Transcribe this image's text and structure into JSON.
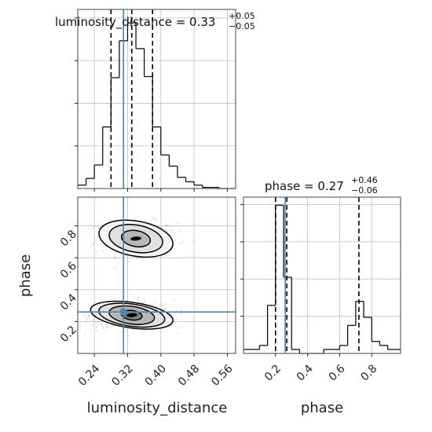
{
  "chart_data": [
    {
      "type": "histogram",
      "panel": "top-left",
      "title": {
        "main": "luminosity_distance = 0.33",
        "sup": "+0.05",
        "sub": "−0.05"
      },
      "xlim": [
        0.2,
        0.58
      ],
      "bin_edges": [
        0.2,
        0.22,
        0.24,
        0.26,
        0.28,
        0.3,
        0.32,
        0.34,
        0.36,
        0.38,
        0.4,
        0.42,
        0.44,
        0.46,
        0.48,
        0.5,
        0.52,
        0.54,
        0.56,
        0.58
      ],
      "counts": [
        3,
        9,
        21,
        55,
        99,
        132,
        148,
        125,
        100,
        55,
        30,
        20,
        10,
        6,
        3,
        1,
        1,
        0,
        0
      ],
      "ymax": 160,
      "quantiles": [
        0.28,
        0.33,
        0.38
      ],
      "truth": 0.31,
      "grid": true
    },
    {
      "type": "scatter",
      "panel": "bottom-left",
      "xlabel": "luminosity_distance",
      "ylabel": "phase",
      "xlim": [
        0.2,
        0.58
      ],
      "ylim": [
        0.0,
        0.98
      ],
      "xticks": [
        "0.24",
        "0.32",
        "0.40",
        "0.48",
        "0.56"
      ],
      "xtick_values": [
        0.24,
        0.32,
        0.4,
        0.48,
        0.56
      ],
      "yticks": [
        "0.2",
        "0.4",
        "0.6",
        "0.8"
      ],
      "ytick_values": [
        0.2,
        0.4,
        0.6,
        0.8
      ],
      "clusters": [
        {
          "center": [
            0.34,
            0.72
          ],
          "spread": [
            0.05,
            0.055
          ],
          "n": 300
        },
        {
          "center": [
            0.33,
            0.24
          ],
          "spread": [
            0.05,
            0.045
          ],
          "n": 420
        }
      ],
      "contour_levels": [
        {
          "mode": 0,
          "rx": 0.035,
          "ry": 0.05,
          "rot": 10
        },
        {
          "mode": 0,
          "rx": 0.065,
          "ry": 0.085,
          "rot": 10
        },
        {
          "mode": 0,
          "rx": 0.09,
          "ry": 0.11,
          "rot": 10
        },
        {
          "mode": 1,
          "rx": 0.025,
          "ry": 0.03,
          "rot": 8
        },
        {
          "mode": 1,
          "rx": 0.055,
          "ry": 0.055,
          "rot": 8
        },
        {
          "mode": 1,
          "rx": 0.08,
          "ry": 0.07,
          "rot": 8
        },
        {
          "mode": 1,
          "rx": 0.1,
          "ry": 0.08,
          "rot": 8
        }
      ],
      "truth": {
        "x": 0.31,
        "y": 0.26
      },
      "grid": true
    },
    {
      "type": "histogram",
      "panel": "bottom-right",
      "title": {
        "main": "phase = 0.27",
        "sup": "+0.46",
        "sub": "−0.06"
      },
      "xlabel": "phase",
      "xlim": [
        0.0,
        0.98
      ],
      "xticks": [
        "0.2",
        "0.4",
        "0.6",
        "0.8"
      ],
      "xtick_values": [
        0.2,
        0.4,
        0.6,
        0.8
      ],
      "bin_edges": [
        0.0,
        0.05,
        0.1,
        0.15,
        0.2,
        0.25,
        0.3,
        0.35,
        0.4,
        0.45,
        0.5,
        0.55,
        0.6,
        0.65,
        0.7,
        0.75,
        0.8,
        0.85,
        0.9,
        0.95,
        0.98
      ],
      "counts": [
        5,
        5,
        10,
        60,
        185,
        95,
        5,
        0,
        0,
        0,
        5,
        5,
        10,
        35,
        65,
        45,
        15,
        10,
        5,
        5
      ],
      "ymax": 195,
      "quantiles": [
        0.2,
        0.27,
        0.72
      ],
      "truth": 0.26,
      "grid": true
    }
  ],
  "colors": {
    "truth": "#4a86b5",
    "hist": "#000000",
    "grid": "#bfbfbf",
    "points": "#9a9a9a",
    "contour_fill": "#5a5a5a"
  }
}
